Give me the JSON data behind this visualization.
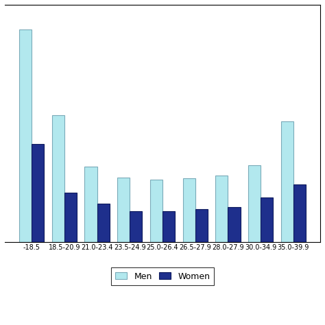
{
  "categories": [
    "-18.5",
    "18.5-20.9",
    "21.0-23.4",
    "23.5-24.9",
    "25.0-26.4",
    "26.5-27.9",
    "28.0-27.9",
    "30.0-34.9",
    "35.0-39.9"
  ],
  "men": [
    520,
    310,
    185,
    158,
    152,
    155,
    163,
    188,
    295
  ],
  "women": [
    240,
    120,
    93,
    76,
    76,
    80,
    86,
    108,
    140
  ],
  "men_color": "#b2e8ee",
  "women_color": "#1e2f8c",
  "men_edge": "#7aaab8",
  "women_edge": "#0d1a5c",
  "legend_men": "Men",
  "legend_women": "Women",
  "bar_width": 0.38,
  "ylim": [
    0,
    580
  ],
  "background": "#ffffff",
  "figsize": [
    4.74,
    4.74
  ],
  "dpi": 100
}
